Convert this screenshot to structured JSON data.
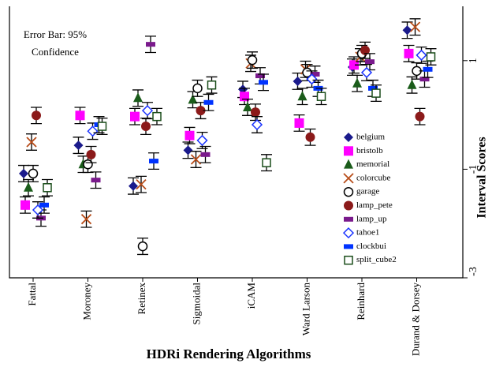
{
  "chart_data": {
    "type": "scatter",
    "annotation": [
      "Error Bar: 95%",
      "Confidence"
    ],
    "x_label": "HDRi Rendering Algorithms",
    "y_label": "Interval Scores",
    "categories": [
      "Fattal",
      "Moroney",
      "Retinex",
      "Sigmoidal",
      "iCAM",
      "Ward Larson",
      "Reinhard",
      "Durand & Dorsey"
    ],
    "ylim": [
      -3,
      2
    ],
    "yticks": [
      1,
      -1,
      -3
    ],
    "error": 0.15,
    "series": [
      {
        "name": "belgium",
        "color": "#1a1a8c",
        "marker": "diamond",
        "values": [
          -1.08,
          -0.56,
          -1.31,
          -0.65,
          0.47,
          0.62,
          0.88,
          1.56
        ]
      },
      {
        "name": "bristolb",
        "color": "#ff00ff",
        "marker": "square",
        "values": [
          -1.66,
          -0.01,
          -0.03,
          -0.38,
          0.34,
          -0.15,
          0.92,
          1.13
        ]
      },
      {
        "name": "memorial",
        "color": "#1a5c1a",
        "marker": "triangle",
        "values": [
          -1.34,
          -0.91,
          0.31,
          0.28,
          0.14,
          0.34,
          0.58,
          0.55
        ]
      },
      {
        "name": "colorcube",
        "color": "#b84d1a",
        "marker": "x",
        "values": [
          -0.5,
          -1.92,
          -1.28,
          -0.82,
          0.95,
          0.84,
          1.07,
          1.62
        ]
      },
      {
        "name": "garage",
        "color": "#000000",
        "marker": "circle",
        "values": [
          -1.08,
          -0.91,
          -2.42,
          0.49,
          1.01,
          0.78,
          1.13,
          0.81
        ]
      },
      {
        "name": "lamp_pete",
        "color": "#8b1a1a",
        "marker": "circle-filled",
        "values": [
          -0.01,
          -0.73,
          -0.21,
          0.08,
          0.05,
          -0.41,
          1.19,
          -0.03
        ]
      },
      {
        "name": "lamp_up",
        "color": "#7a1a8c",
        "marker": "dash",
        "values": [
          -1.9,
          -1.2,
          1.3,
          -0.73,
          0.72,
          0.75,
          0.98,
          0.66
        ]
      },
      {
        "name": "tahoe1",
        "color": "#1a33ff",
        "marker": "diamond-open",
        "values": [
          -1.75,
          -0.3,
          0.08,
          -0.47,
          -0.18,
          0.66,
          0.78,
          1.1
        ]
      },
      {
        "name": "clockbui",
        "color": "#0033ff",
        "marker": "dash",
        "values": [
          -1.66,
          -0.18,
          -0.85,
          0.23,
          0.6,
          0.49,
          0.49,
          0.84
        ]
      },
      {
        "name": "split_cube2",
        "color": "#1a4d1a",
        "marker": "square-open",
        "values": [
          -1.34,
          -0.21,
          -0.03,
          0.55,
          -0.88,
          0.34,
          0.4,
          1.07
        ]
      }
    ]
  }
}
